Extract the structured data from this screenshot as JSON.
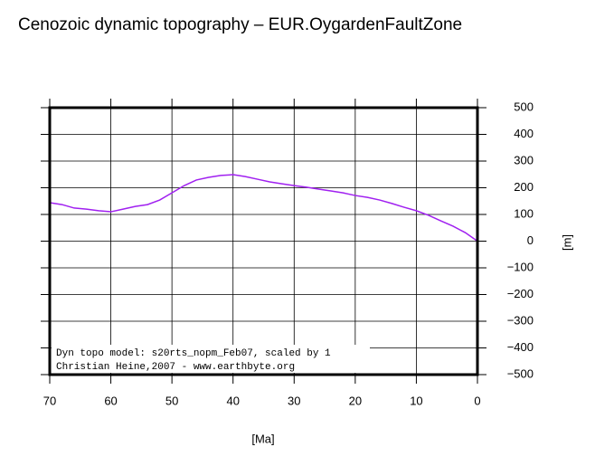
{
  "chart_data": {
    "type": "line",
    "title": "Cenozoic dynamic topography – EUR.OygardenFaultZone",
    "x_label": "[Ma]",
    "y_label": "[m]",
    "annotations": [
      "Dyn topo model: s20rts_nopm_Feb07, scaled by 1",
      "Christian Heine,2007 - www.earthbyte.org"
    ],
    "x": [
      70,
      68,
      66,
      64,
      62,
      60,
      58,
      56,
      54,
      52,
      50,
      48,
      46,
      44,
      42,
      40,
      38,
      36,
      34,
      32,
      30,
      28,
      26,
      24,
      22,
      20,
      18,
      16,
      14,
      12,
      10,
      8,
      6,
      4,
      2,
      0
    ],
    "values": [
      144,
      137,
      124,
      120,
      114,
      110,
      120,
      130,
      137,
      154,
      181,
      208,
      229,
      239,
      246,
      249,
      242,
      232,
      222,
      215,
      208,
      202,
      195,
      188,
      181,
      171,
      164,
      154,
      141,
      127,
      114,
      97,
      76,
      56,
      32,
      0
    ],
    "color": "#a020f0",
    "xlim": [
      70,
      0
    ],
    "xticks": [
      70,
      60,
      50,
      40,
      30,
      20,
      10,
      0
    ],
    "ylim": [
      -500,
      500
    ],
    "yticks": [
      {
        "value": -500,
        "label": "−500"
      },
      {
        "value": -400,
        "label": "−400"
      },
      {
        "value": -300,
        "label": "−300"
      },
      {
        "value": -200,
        "label": "−200"
      },
      {
        "value": -100,
        "label": "−100"
      },
      0,
      100,
      200,
      300,
      400,
      500
    ],
    "grid": true
  }
}
